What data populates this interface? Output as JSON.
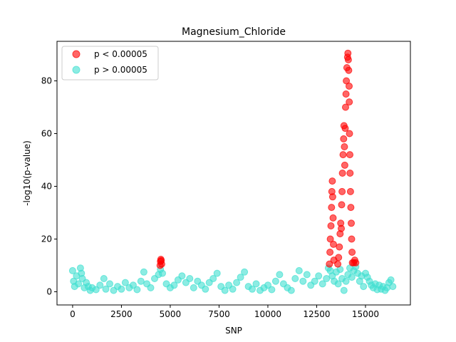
{
  "chart_data": {
    "type": "scatter",
    "title": "Magnesium_Chloride",
    "xlabel": "SNP",
    "ylabel": "-log10(p-value)",
    "xlim": [
      -800,
      17300
    ],
    "ylim": [
      -5,
      95
    ],
    "xticks": [
      0,
      2500,
      5000,
      7500,
      10000,
      12500,
      15000
    ],
    "yticks": [
      0,
      20,
      40,
      60,
      80
    ],
    "legend_position": "upper-left",
    "series": [
      {
        "name": "p < 0.00005",
        "color": "#ff0000",
        "points": [
          [
            4480,
            10.0
          ],
          [
            4500,
            11.5
          ],
          [
            4520,
            12.3
          ],
          [
            4540,
            11.8
          ],
          [
            4560,
            10.5
          ],
          [
            13150,
            10.5
          ],
          [
            13180,
            15
          ],
          [
            13200,
            20
          ],
          [
            13230,
            25
          ],
          [
            13260,
            32
          ],
          [
            13280,
            38
          ],
          [
            13300,
            42
          ],
          [
            13320,
            36
          ],
          [
            13340,
            28
          ],
          [
            13360,
            18
          ],
          [
            13380,
            12
          ],
          [
            13580,
            10.5
          ],
          [
            13620,
            13
          ],
          [
            13660,
            17
          ],
          [
            13700,
            22
          ],
          [
            13730,
            26
          ],
          [
            13760,
            24
          ],
          [
            13780,
            33
          ],
          [
            13800,
            38
          ],
          [
            13820,
            45
          ],
          [
            13850,
            52
          ],
          [
            13880,
            58
          ],
          [
            13900,
            63
          ],
          [
            13920,
            55
          ],
          [
            13940,
            48
          ],
          [
            13960,
            62
          ],
          [
            13980,
            70
          ],
          [
            14000,
            75
          ],
          [
            14020,
            80
          ],
          [
            14050,
            85
          ],
          [
            14080,
            89
          ],
          [
            14100,
            90.5
          ],
          [
            14120,
            88
          ],
          [
            14140,
            84
          ],
          [
            14160,
            78
          ],
          [
            14170,
            72
          ],
          [
            14180,
            60
          ],
          [
            14200,
            52
          ],
          [
            14210,
            45
          ],
          [
            14230,
            38
          ],
          [
            14250,
            32
          ],
          [
            14270,
            26
          ],
          [
            14290,
            20
          ],
          [
            14310,
            15
          ],
          [
            14330,
            11
          ],
          [
            14400,
            11
          ],
          [
            14450,
            12
          ],
          [
            14500,
            11
          ]
        ]
      },
      {
        "name": "p > 0.00005",
        "color": "#40e0d0",
        "points": [
          [
            0,
            8
          ],
          [
            50,
            4
          ],
          [
            100,
            2
          ],
          [
            200,
            6
          ],
          [
            300,
            3
          ],
          [
            400,
            9
          ],
          [
            450,
            7
          ],
          [
            500,
            5
          ],
          [
            600,
            1.5
          ],
          [
            700,
            3.5
          ],
          [
            800,
            2
          ],
          [
            900,
            0.5
          ],
          [
            1000,
            1.5
          ],
          [
            1200,
            0.8
          ],
          [
            1400,
            2.5
          ],
          [
            1600,
            5
          ],
          [
            1700,
            1
          ],
          [
            1900,
            3
          ],
          [
            2100,
            0.5
          ],
          [
            2300,
            2
          ],
          [
            2500,
            1
          ],
          [
            2700,
            3.5
          ],
          [
            2900,
            1.5
          ],
          [
            3100,
            2.5
          ],
          [
            3300,
            0.8
          ],
          [
            3500,
            4
          ],
          [
            3650,
            7.5
          ],
          [
            3800,
            3
          ],
          [
            4000,
            1.5
          ],
          [
            4200,
            5
          ],
          [
            4400,
            6.5
          ],
          [
            4500,
            8.5
          ],
          [
            4600,
            7
          ],
          [
            4800,
            3
          ],
          [
            5000,
            1.5
          ],
          [
            5200,
            2.5
          ],
          [
            5400,
            4.5
          ],
          [
            5600,
            6
          ],
          [
            5800,
            3.5
          ],
          [
            6000,
            5
          ],
          [
            6200,
            1.5
          ],
          [
            6400,
            4
          ],
          [
            6600,
            2.5
          ],
          [
            6800,
            1
          ],
          [
            7000,
            3.5
          ],
          [
            7200,
            5
          ],
          [
            7400,
            7
          ],
          [
            7600,
            2
          ],
          [
            7800,
            0.5
          ],
          [
            8000,
            2.5
          ],
          [
            8200,
            1
          ],
          [
            8400,
            3.5
          ],
          [
            8600,
            5.5
          ],
          [
            8800,
            7.5
          ],
          [
            9000,
            2
          ],
          [
            9200,
            1
          ],
          [
            9400,
            3
          ],
          [
            9600,
            0.5
          ],
          [
            9800,
            1.5
          ],
          [
            10000,
            2.5
          ],
          [
            10200,
            0.8
          ],
          [
            10400,
            4
          ],
          [
            10600,
            6.5
          ],
          [
            10800,
            3
          ],
          [
            11000,
            1.5
          ],
          [
            11200,
            0.5
          ],
          [
            11400,
            5
          ],
          [
            11600,
            8
          ],
          [
            11800,
            4
          ],
          [
            12000,
            6.5
          ],
          [
            12200,
            2.5
          ],
          [
            12400,
            4
          ],
          [
            12600,
            6
          ],
          [
            12800,
            3
          ],
          [
            13000,
            5
          ],
          [
            13100,
            9
          ],
          [
            13200,
            8
          ],
          [
            13300,
            6
          ],
          [
            13400,
            4
          ],
          [
            13500,
            7.5
          ],
          [
            13600,
            3
          ],
          [
            13700,
            8.5
          ],
          [
            13800,
            5
          ],
          [
            13900,
            0.5
          ],
          [
            14000,
            4
          ],
          [
            14100,
            6.5
          ],
          [
            14200,
            9
          ],
          [
            14300,
            5.5
          ],
          [
            14400,
            8
          ],
          [
            14500,
            9.5
          ],
          [
            14600,
            7
          ],
          [
            14700,
            4
          ],
          [
            14800,
            6
          ],
          [
            14900,
            2
          ],
          [
            15000,
            7
          ],
          [
            15100,
            5.5
          ],
          [
            15200,
            4
          ],
          [
            15300,
            2.5
          ],
          [
            15400,
            1.5
          ],
          [
            15500,
            3
          ],
          [
            15600,
            0.8
          ],
          [
            15700,
            2.5
          ],
          [
            15800,
            1
          ],
          [
            15900,
            2
          ],
          [
            16000,
            0.5
          ],
          [
            16100,
            1.5
          ],
          [
            16200,
            3.5
          ],
          [
            16300,
            4.5
          ],
          [
            16400,
            2
          ]
        ]
      }
    ]
  }
}
